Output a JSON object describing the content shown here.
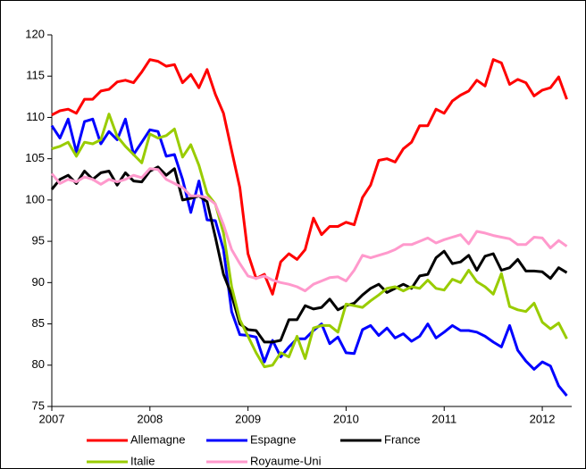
{
  "chart_data": {
    "type": "line",
    "x": [
      2007,
      2007.083,
      2007.167,
      2007.25,
      2007.333,
      2007.417,
      2007.5,
      2007.583,
      2007.667,
      2007.75,
      2007.833,
      2007.917,
      2008,
      2008.083,
      2008.167,
      2008.25,
      2008.333,
      2008.417,
      2008.5,
      2008.583,
      2008.667,
      2008.75,
      2008.833,
      2008.917,
      2009,
      2009.083,
      2009.167,
      2009.25,
      2009.333,
      2009.417,
      2009.5,
      2009.583,
      2009.667,
      2009.75,
      2009.833,
      2009.917,
      2010,
      2010.083,
      2010.167,
      2010.25,
      2010.333,
      2010.417,
      2010.5,
      2010.583,
      2010.667,
      2010.75,
      2010.833,
      2010.917,
      2011,
      2011.083,
      2011.167,
      2011.25,
      2011.333,
      2011.417,
      2011.5,
      2011.583,
      2011.667,
      2011.75,
      2011.833,
      2011.917,
      2012,
      2012.083,
      2012.167,
      2012.25
    ],
    "series": [
      {
        "name": "Allemagne",
        "color": "#ff0000",
        "values": [
          110.3,
          110.8,
          111,
          110.5,
          112.2,
          112.2,
          113.2,
          113.4,
          114.3,
          114.5,
          114.2,
          115.5,
          117,
          116.8,
          116.2,
          116.4,
          114.2,
          115.2,
          113.6,
          115.8,
          112.8,
          110.5,
          106,
          101.5,
          93.5,
          90.5,
          91,
          88.6,
          92.5,
          93.5,
          92.8,
          94,
          97.8,
          95.8,
          96.8,
          96.8,
          97.3,
          97,
          100.3,
          101.8,
          104.8,
          105,
          104.6,
          106.2,
          107,
          109,
          109,
          111,
          110.5,
          112,
          112.7,
          113.2,
          114.5,
          113.8,
          117,
          116.6,
          114,
          114.6,
          114.2,
          112.6,
          113.3,
          113.6,
          114.9,
          112.2
        ]
      },
      {
        "name": "Espagne",
        "color": "#0000ff",
        "values": [
          109,
          107.5,
          109.8,
          105.8,
          109.5,
          109.8,
          106.8,
          108.3,
          107.3,
          109.8,
          105.5,
          107,
          108.5,
          108.3,
          105.3,
          105.5,
          102.5,
          98.5,
          102.3,
          97.6,
          97.5,
          94,
          86.5,
          83.7,
          83.6,
          83.4,
          80.4,
          83,
          81,
          82.2,
          83.2,
          83.2,
          84.2,
          85,
          82.6,
          83.4,
          81.5,
          81.4,
          84.3,
          84.8,
          83.6,
          84.5,
          83.3,
          83.8,
          82.9,
          83.5,
          85,
          83.3,
          84,
          84.8,
          84.2,
          84.2,
          84,
          83.5,
          82.8,
          82.2,
          84.8,
          81.8,
          80.5,
          79.5,
          80.4,
          79.9,
          77.5,
          76.3
        ]
      },
      {
        "name": "France",
        "color": "#000000",
        "values": [
          101.3,
          102.5,
          103,
          102,
          103.5,
          102.5,
          103.3,
          103.5,
          101.8,
          103.3,
          102.3,
          102.2,
          103.5,
          104,
          103,
          103.8,
          100,
          100.2,
          100.5,
          99.8,
          95.5,
          91,
          88.5,
          85,
          84.3,
          84.2,
          82.8,
          82.8,
          83,
          85.5,
          85.5,
          87.2,
          86.8,
          87,
          88,
          86.7,
          87.2,
          87.5,
          88.5,
          89.3,
          89.8,
          88.8,
          89.3,
          89.8,
          89.3,
          90.8,
          91,
          93,
          93.8,
          92.3,
          92.5,
          93.3,
          91.5,
          93.2,
          93.5,
          91.5,
          91.8,
          92.8,
          91.4,
          91.4,
          91.3,
          90.5,
          91.8,
          91.2
        ]
      },
      {
        "name": "Italie",
        "color": "#99cc00",
        "values": [
          106.2,
          106.5,
          107,
          105.3,
          107,
          106.8,
          107.3,
          110.4,
          107.7,
          106.5,
          105.5,
          104.5,
          108,
          107.5,
          107.8,
          108.6,
          105.2,
          106.7,
          104.2,
          100.8,
          99.5,
          96,
          89.5,
          85.5,
          83.5,
          81.5,
          79.8,
          80,
          81.5,
          81,
          83.5,
          80.8,
          84.5,
          84.8,
          84.8,
          84,
          87.4,
          87.2,
          87,
          87.8,
          88.5,
          89.3,
          89.5,
          89,
          89.5,
          89.3,
          90.3,
          89.3,
          89.1,
          90.4,
          90,
          91.5,
          90.1,
          89.5,
          88.6,
          91.1,
          87.1,
          86.7,
          86.5,
          87.5,
          85.2,
          84.4,
          85.1,
          83.2
        ]
      },
      {
        "name": "Royaume-Uni",
        "color": "#ff99cc",
        "values": [
          103.2,
          102,
          102.5,
          102.2,
          102.8,
          102.5,
          101.9,
          102.5,
          102.2,
          102.5,
          103,
          102.7,
          103.8,
          103.7,
          102.5,
          102,
          101.5,
          100.5,
          100.5,
          100.3,
          99.5,
          97,
          94,
          92.3,
          90.8,
          90.5,
          90.8,
          90.3,
          90,
          89.8,
          89.5,
          89,
          89.8,
          90.2,
          90.6,
          90.7,
          90.2,
          91.5,
          93.3,
          93,
          93.3,
          93.6,
          94,
          94.6,
          94.6,
          95,
          95.4,
          94.8,
          95.2,
          95.5,
          95.8,
          94.7,
          96.2,
          96,
          95.7,
          95.5,
          95.3,
          94.6,
          94.6,
          95.5,
          95.4,
          94.2,
          95.1,
          94.4
        ]
      }
    ],
    "xlim": [
      2007,
      2012.3
    ],
    "xticks": [
      2007,
      2008,
      2009,
      2010,
      2011,
      2012
    ],
    "ylim": [
      75,
      120
    ],
    "yticks": [
      75,
      80,
      85,
      90,
      95,
      100,
      105,
      110,
      115,
      120
    ],
    "grid": false,
    "legend": "bottom"
  }
}
